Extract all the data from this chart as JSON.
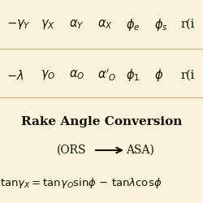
{
  "background_color": "#faf3dc",
  "row_bg": "#faf3dc",
  "divider_color": "#c8b078",
  "text_color": "#1a1000",
  "title": "Rake Angle Conversion",
  "row1_items": [
    [
      0.03,
      "$-\\gamma_Y$"
    ],
    [
      0.2,
      "$\\gamma_X$"
    ],
    [
      0.34,
      "$\\alpha_Y$"
    ],
    [
      0.48,
      "$\\alpha_X$"
    ],
    [
      0.62,
      "$\\phi_e$"
    ],
    [
      0.76,
      "$\\phi_s$"
    ],
    [
      0.89,
      "r(i"
    ]
  ],
  "row2_items": [
    [
      0.03,
      "$-\\lambda$"
    ],
    [
      0.2,
      "$\\gamma_O$"
    ],
    [
      0.34,
      "$\\alpha_O$"
    ],
    [
      0.48,
      "$\\alpha'_O$"
    ],
    [
      0.62,
      "$\\phi_1$"
    ],
    [
      0.76,
      "$\\phi$"
    ],
    [
      0.89,
      "r(i"
    ]
  ],
  "title_fontsize": 11,
  "row_fontsize": 10.5,
  "formula_fontsize": 9.5,
  "subtitle_fontsize": 10,
  "figsize": [
    2.5,
    2.5
  ],
  "dpi": 100
}
